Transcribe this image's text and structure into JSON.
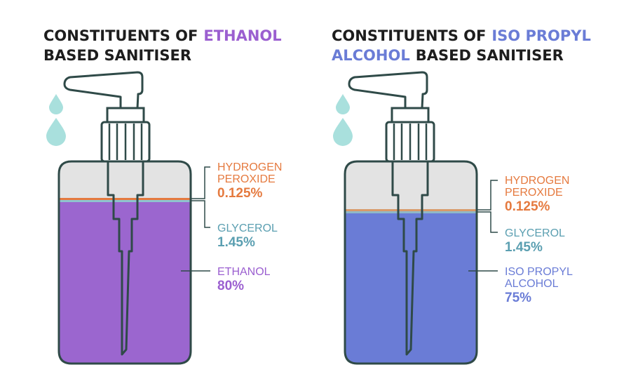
{
  "colors": {
    "outline": "#2f4a48",
    "drop": "#a9e0dd",
    "headspace": "#e3e3e3",
    "ethanol_liquid": "#9b66cf",
    "ipa_liquid": "#6a7cd6",
    "peroxide_text": "#e57a3f",
    "glycerol_text": "#5b9fb1",
    "ethanol_text": "#9b5fd0",
    "ipa_text": "#6a7cd6"
  },
  "ethanol_panel": {
    "title_prefix": "CONSTITUENTS OF",
    "title_highlight": "ETHANOL",
    "title_line2": "BASED SANITISER",
    "peroxide": {
      "label_line1": "HYDROGEN",
      "label_line2": "PEROXIDE",
      "value": "0.125%"
    },
    "glycerol": {
      "label": "GLYCEROL",
      "value": "1.45%"
    },
    "alcohol": {
      "label_line1": "ETHANOL",
      "value": "80%"
    }
  },
  "ipa_panel": {
    "title_prefix": "CONSTITUENTS OF",
    "title_highlight": "ISO PROPYL",
    "title_highlight_line2": "ALCOHOL",
    "title_suffix": "BASED SANITISER",
    "peroxide": {
      "label_line1": "HYDROGEN",
      "label_line2": "PEROXIDE",
      "value": "0.125%"
    },
    "glycerol": {
      "label": "GLYCEROL",
      "value": "1.45%"
    },
    "alcohol": {
      "label_line1": "ISO PROPYL",
      "label_line2": "ALCOHOL",
      "value": "75%"
    }
  }
}
